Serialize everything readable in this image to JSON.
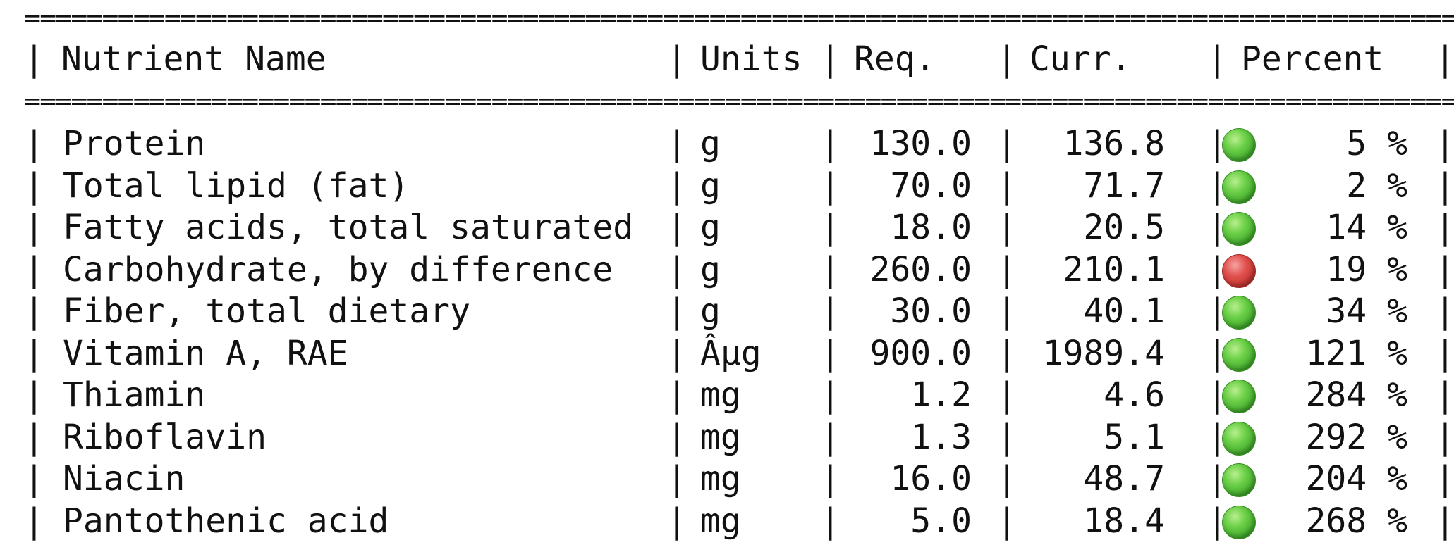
{
  "header": {
    "name": "Nutrient Name",
    "units": "Units",
    "req": "Req.",
    "curr": "Curr.",
    "percent": "Percent"
  },
  "rule": "==================================================================================================",
  "rows": [
    {
      "name": "Protein",
      "units": "g",
      "req": "130.0",
      "curr": "136.8",
      "status": "green",
      "percent": "5 %"
    },
    {
      "name": "Total lipid (fat)",
      "units": "g",
      "req": "70.0",
      "curr": "71.7",
      "status": "green",
      "percent": "2 %"
    },
    {
      "name": "Fatty acids, total saturated",
      "units": "g",
      "req": "18.0",
      "curr": "20.5",
      "status": "green",
      "percent": "14 %"
    },
    {
      "name": "Carbohydrate, by difference",
      "units": "g",
      "req": "260.0",
      "curr": "210.1",
      "status": "red",
      "percent": "19 %"
    },
    {
      "name": "Fiber, total dietary",
      "units": "g",
      "req": "30.0",
      "curr": "40.1",
      "status": "green",
      "percent": "34 %"
    },
    {
      "name": "Vitamin A, RAE",
      "units": "Âµg",
      "req": "900.0",
      "curr": "1989.4",
      "status": "green",
      "percent": "121 %"
    },
    {
      "name": "Thiamin",
      "units": "mg",
      "req": "1.2",
      "curr": "4.6",
      "status": "green",
      "percent": "284 %"
    },
    {
      "name": "Riboflavin",
      "units": "mg",
      "req": "1.3",
      "curr": "5.1",
      "status": "green",
      "percent": "292 %"
    },
    {
      "name": "Niacin",
      "units": "mg",
      "req": "16.0",
      "curr": "48.7",
      "status": "green",
      "percent": "204 %"
    },
    {
      "name": "Pantothenic acid",
      "units": "mg",
      "req": "5.0",
      "curr": "18.4",
      "status": "green",
      "percent": "268 %"
    }
  ],
  "colors": {
    "ok": "#3fa82a",
    "low": "#c0302d"
  }
}
